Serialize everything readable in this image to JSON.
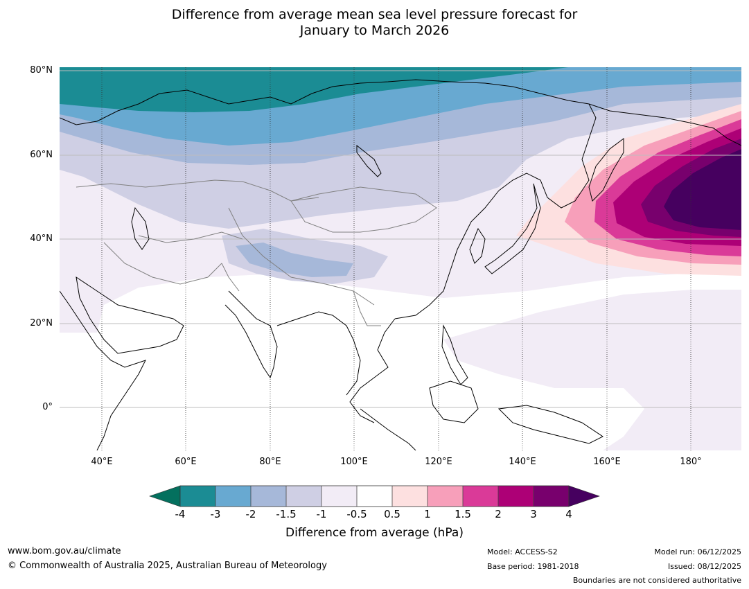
{
  "title": {
    "line1": "Difference from average mean sea level pressure forecast for",
    "line2": "January to March 2026"
  },
  "map": {
    "lat_labels": [
      "80°N",
      "60°N",
      "40°N",
      "20°N",
      "0°"
    ],
    "lon_labels": [
      "40°E",
      "60°E",
      "80°E",
      "100°E",
      "120°E",
      "140°E",
      "160°E",
      "180°"
    ],
    "lat_range": [
      -10,
      81
    ],
    "lon_range": [
      30,
      192
    ]
  },
  "colorbar": {
    "title": "Difference from average (hPa)",
    "ticks": [
      "-4",
      "-3",
      "-2",
      "-1.5",
      "-1",
      "-0.5",
      "0.5",
      "1",
      "1.5",
      "2",
      "3",
      "4"
    ],
    "colors": [
      "#1b8c94",
      "#68a9d1",
      "#a6b8d9",
      "#cfcfe4",
      "#f2ecf6",
      "#ffffff",
      "#fde0e0",
      "#f79fba",
      "#da3a98",
      "#ad0076",
      "#78006d"
    ],
    "under_color": "#04705e",
    "over_color": "#46005f"
  },
  "footer": {
    "website": "www.bom.gov.au/climate",
    "copyright": "© Commonwealth of Australia 2025, Australian Bureau of Meteorology",
    "model": "Model: ACCESS-S2",
    "base_period": "Base period: 1981-2018",
    "model_run": "Model run: 06/12/2025",
    "issued": "Issued: 08/12/2025",
    "disclaimer": "Boundaries are not considered authoritative"
  }
}
